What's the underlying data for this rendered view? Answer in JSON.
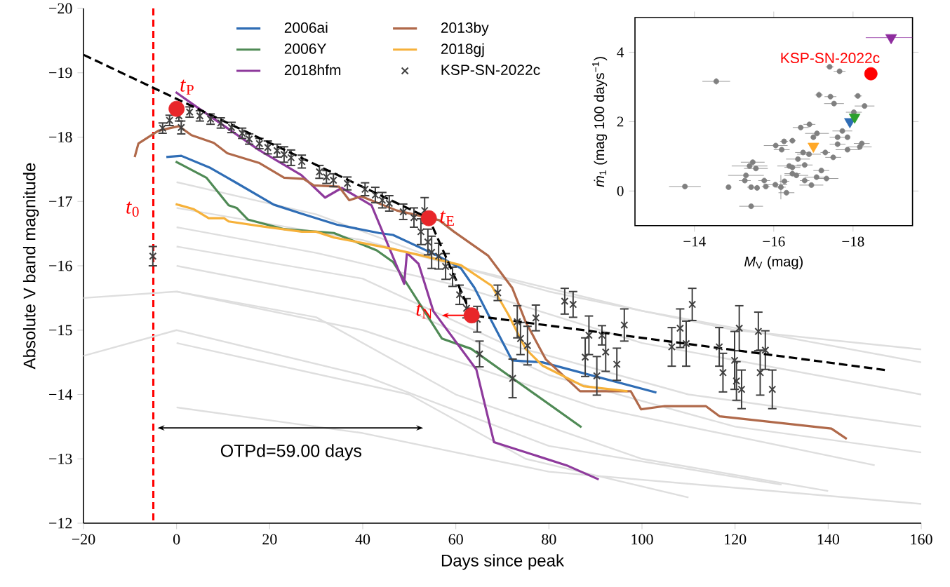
{
  "chart_data": [
    {
      "type": "line",
      "xlabel": "Days since peak",
      "ylabel": "Absolute V band magnitude",
      "xlim": [
        -20,
        160
      ],
      "ylim": [
        -12,
        -20
      ],
      "xticks": [
        {
          "value": -20,
          "label": "−20"
        },
        {
          "value": 0,
          "label": "0"
        },
        {
          "value": 20,
          "label": "20"
        },
        {
          "value": 40,
          "label": "40"
        },
        {
          "value": 60,
          "label": "60"
        },
        {
          "value": 80,
          "label": "80"
        },
        {
          "value": 100,
          "label": "100"
        },
        {
          "value": 120,
          "label": "120"
        },
        {
          "value": 140,
          "label": "140"
        },
        {
          "value": 160,
          "label": "160"
        }
      ],
      "yticks": [
        {
          "value": -20,
          "label": "−20"
        },
        {
          "value": -19,
          "label": "−19"
        },
        {
          "value": -18,
          "label": "−18"
        },
        {
          "value": -17,
          "label": "−17"
        },
        {
          "value": -16,
          "label": "−16"
        },
        {
          "value": -15,
          "label": "−15"
        },
        {
          "value": -14,
          "label": "−14"
        },
        {
          "value": -13,
          "label": "−13"
        },
        {
          "value": -12,
          "label": "−12"
        }
      ],
      "legend": "top",
      "ref_lines": [
        {
          "axis": "x",
          "value": -5,
          "label": "*t*$_{0}$",
          "color": "#ff0000",
          "line_style": "dashed"
        }
      ],
      "annotations": [
        {
          "text": "*t*$_{P}$",
          "x": 0,
          "y": -18.44
        },
        {
          "text": "*t*$_{E}$",
          "x": 54.2,
          "y": -16.74
        },
        {
          "text": "*t*$_{N}$",
          "x": 57,
          "y": -15.23
        },
        "OTPd=59.00 days"
      ],
      "series": [
        {
          "color": "#dedede",
          "x": [
            0,
            40,
            80,
            120,
            160
          ],
          "values": [
            -16.9,
            -16.4,
            -15.6,
            -15.0,
            -14.7
          ]
        },
        {
          "color": "#dedede",
          "x": [
            0,
            30,
            60,
            100,
            160
          ],
          "values": [
            -16.6,
            -16.2,
            -15.7,
            -14.8,
            -14.0
          ]
        },
        {
          "color": "#dedede",
          "x": [
            0,
            40,
            70,
            110,
            160
          ],
          "values": [
            -16.3,
            -15.8,
            -14.8,
            -14.0,
            -13.5
          ]
        },
        {
          "color": "#dedede",
          "x": [
            0,
            50,
            80,
            120,
            160
          ],
          "values": [
            -16.0,
            -15.3,
            -14.3,
            -13.5,
            -13.1
          ]
        },
        {
          "color": "#dedede",
          "x": [
            -20,
            0,
            40,
            90,
            150
          ],
          "values": [
            -15.5,
            -15.6,
            -15.0,
            -13.8,
            -12.9
          ]
        },
        {
          "color": "#dedede",
          "x": [
            0,
            30,
            60,
            100,
            140
          ],
          "values": [
            -15.6,
            -15.2,
            -14.0,
            -13.0,
            -12.5
          ]
        },
        {
          "color": "#dedede",
          "x": [
            -20,
            0,
            40,
            80,
            130
          ],
          "values": [
            -14.6,
            -15.0,
            -14.3,
            -13.2,
            -12.6
          ]
        },
        {
          "color": "#dedede",
          "x": [
            0,
            50,
            75,
            110
          ],
          "values": [
            -14.8,
            -14.0,
            -13.0,
            -12.4
          ]
        },
        {
          "color": "#dedede",
          "x": [
            0,
            30,
            60,
            100,
            160
          ],
          "values": [
            -17.3,
            -16.8,
            -16.0,
            -15.3,
            -14.5
          ]
        },
        {
          "color": "#dedede",
          "x": [
            0,
            40,
            80,
            160
          ],
          "values": [
            -13.8,
            -13.4,
            -12.8,
            -12.3
          ]
        },
        {
          "name": "2006ai",
          "color": "#2f6db5",
          "x": [
            -2.2,
            1.0,
            7.3,
            12.6,
            20.9,
            26.9,
            34.4,
            43.5,
            46.5,
            56.0,
            61.1,
            64.0,
            67.7,
            72.1,
            78.6,
            103.1
          ],
          "values": [
            -17.69,
            -17.71,
            -17.52,
            -17.3,
            -16.95,
            -16.81,
            -16.64,
            -16.51,
            -16.48,
            -16.16,
            -15.96,
            -15.66,
            -15.14,
            -14.53,
            -14.5,
            -14.03
          ]
        },
        {
          "name": "2006Y",
          "color": "#4f8a55",
          "x": [
            -0.2,
            6.4,
            11.2,
            12.9,
            15.3,
            23.1,
            33.8,
            43.0,
            46.5,
            57.0,
            63.3,
            87.0
          ],
          "values": [
            -17.62,
            -17.37,
            -16.94,
            -16.9,
            -16.72,
            -16.57,
            -16.51,
            -16.24,
            -16.06,
            -14.87,
            -14.71,
            -13.49
          ]
        },
        {
          "name": "2018hfm",
          "color": "#8e3a9c",
          "x": [
            -0.2,
            3.7,
            17.7,
            26.8,
            31.9,
            35.5,
            41.9,
            48.9,
            49.5,
            52.0,
            55.2,
            64.4,
            68.2,
            84.1,
            90.7
          ],
          "values": [
            -18.7,
            -18.5,
            -17.8,
            -17.41,
            -17.06,
            -17.21,
            -16.94,
            -15.72,
            -16.2,
            -16.03,
            -15.29,
            -14.39,
            -13.26,
            -12.89,
            -12.68
          ]
        },
        {
          "name": "2013by",
          "color": "#b0694a",
          "x": [
            -9.0,
            -8.2,
            -3.9,
            0.5,
            3.2,
            8.0,
            10.9,
            17.7,
            23.1,
            27.3,
            29.5,
            34.9,
            37.1,
            39.7,
            47.3,
            56.4,
            59.6,
            66.9,
            72.1,
            75.0,
            79.3,
            86.7,
            97.6,
            99.8,
            104.9,
            113.7,
            116.7,
            140.7,
            144.0
          ],
          "values": [
            -17.69,
            -17.9,
            -18.1,
            -18.17,
            -18.03,
            -17.91,
            -17.75,
            -17.6,
            -17.37,
            -17.35,
            -17.25,
            -17.23,
            -17.02,
            -17.08,
            -16.86,
            -16.71,
            -16.53,
            -16.16,
            -15.66,
            -15.13,
            -14.55,
            -14.05,
            -14.05,
            -13.77,
            -13.82,
            -13.82,
            -13.66,
            -13.47,
            -13.31
          ]
        },
        {
          "name": "2018gj",
          "color": "#f6b13a",
          "x": [
            -0.2,
            3.7,
            6.9,
            10.2,
            11.2,
            18.7,
            26.9,
            30.0,
            33.8,
            44.6,
            52.7,
            61.1,
            67.7,
            71.3,
            75.0,
            78.6,
            87.4,
            96.9
          ],
          "values": [
            -16.96,
            -16.88,
            -16.74,
            -16.74,
            -16.69,
            -16.61,
            -16.53,
            -16.53,
            -16.44,
            -16.29,
            -16.16,
            -16.01,
            -15.69,
            -15.24,
            -14.71,
            -14.45,
            -14.13,
            -14.05
          ]
        },
        {
          "name": "KSP-SN-2022c",
          "type": "scatter",
          "color": "#404040",
          "marker": "cross",
          "x": [
            -5.1,
            -3.0,
            -1.5,
            0.5,
            1.0,
            2.8,
            5.0,
            7.3,
            9.5,
            11.8,
            14.1,
            15.6,
            17.8,
            19.6,
            21.6,
            23.1,
            24.6,
            26.9,
            30.7,
            32.2,
            33.7,
            36.7,
            40.5,
            42.7,
            44.2,
            45.7,
            48.7,
            51.0,
            53.3,
            52.5,
            54.0,
            54.8,
            56.3,
            57.8,
            59.3,
            60.8,
            62.3,
            64.6,
            65.1,
            69.0,
            72.2,
            73.2,
            73.9,
            75.4,
            77.2,
            83.4,
            85.2,
            88.6,
            87.8,
            90.3,
            91.4,
            92.2,
            94.6,
            96.2,
            106.4,
            108.2,
            109.5,
            110.8,
            116.6,
            117.4,
            119.9,
            120.9,
            120.3,
            121.4,
            125.0,
            125.4,
            126.5,
            128.0
          ],
          "values": [
            -16.15,
            -18.14,
            -18.26,
            -18.33,
            -18.15,
            -18.39,
            -18.33,
            -18.28,
            -18.22,
            -18.15,
            -18.06,
            -17.97,
            -17.9,
            -17.84,
            -17.79,
            -17.73,
            -17.68,
            -17.62,
            -17.46,
            -17.38,
            -17.33,
            -17.28,
            -17.19,
            -17.1,
            -17.02,
            -16.97,
            -16.84,
            -16.75,
            -16.86,
            -16.53,
            -16.37,
            -16.21,
            -16.15,
            -15.99,
            -15.83,
            -15.55,
            -15.34,
            -15.17,
            -14.63,
            -15.58,
            -14.25,
            -15.13,
            -14.87,
            -14.76,
            -15.19,
            -15.45,
            -15.4,
            -14.92,
            -14.58,
            -14.29,
            -14.92,
            -14.66,
            -14.47,
            -15.08,
            -14.74,
            -15.03,
            -14.79,
            -15.4,
            -14.74,
            -14.34,
            -14.53,
            -15.03,
            -14.21,
            -14.08,
            -14.98,
            -14.34,
            -14.69,
            -14.08
          ],
          "errors": [
            0.15,
            0.08,
            0.08,
            0.08,
            0.1,
            0.08,
            0.08,
            0.08,
            0.08,
            0.08,
            0.08,
            0.08,
            0.08,
            0.1,
            0.1,
            0.12,
            0.12,
            0.1,
            0.1,
            0.1,
            0.1,
            0.1,
            0.1,
            0.12,
            0.12,
            0.12,
            0.12,
            0.15,
            0.2,
            0.2,
            0.2,
            0.25,
            0.2,
            0.2,
            0.15,
            0.15,
            0.15,
            0.2,
            0.2,
            0.12,
            0.3,
            0.25,
            0.25,
            0.3,
            0.2,
            0.2,
            0.2,
            0.3,
            0.3,
            0.3,
            0.15,
            0.3,
            0.25,
            0.25,
            0.3,
            0.3,
            0.35,
            0.25,
            0.3,
            0.3,
            0.45,
            0.35,
            0.3,
            0.3,
            0.3,
            0.35,
            0.3,
            0.3
          ]
        },
        {
          "color": "#000000",
          "line_style": "dashed",
          "x": [
            -20,
            54.2,
            63.4,
            152.3
          ],
          "values": [
            -19.28,
            -16.74,
            -15.23,
            -14.38
          ]
        },
        {
          "type": "scatter",
          "color": "#e8262a",
          "marker": "circle",
          "x": [
            0,
            54.2,
            63.4
          ],
          "values": [
            -18.44,
            -16.74,
            -15.23
          ]
        }
      ]
    },
    {
      "type": "scatter",
      "xlabel": "*M*$_{V}$ (mag)",
      "ylabel": "*ṁ*$_{1}$ (mag 100 days$^{−1}$)",
      "xlim": [
        -12.5,
        -19.5
      ],
      "ylim": [
        -1,
        5
      ],
      "xticks": [
        {
          "value": -14,
          "label": "−14"
        },
        {
          "value": -16,
          "label": "−16"
        },
        {
          "value": -18,
          "label": "−18"
        }
      ],
      "yticks": [
        0,
        2,
        4
      ],
      "series": [
        {
          "color": "#808080",
          "marker": "circle",
          "x": [
            -13.76,
            -14.55,
            -14.86,
            -15.3,
            -15.27,
            -15.39,
            -15.47,
            -15.55,
            -15.43,
            -15.43,
            -15.58,
            -15.76,
            -15.8,
            -16.05,
            -16.2,
            -16.04,
            -16.18,
            -16.26,
            -16.47,
            -16.27,
            -16.32,
            -16.39,
            -16.47,
            -16.47,
            -16.57,
            -16.61,
            -16.68,
            -16.9,
            -16.74,
            -16.89,
            -16.78,
            -16.78,
            -16.95,
            -17.0,
            -17.09,
            -17.08,
            -17.2,
            -17.14,
            -17.3,
            -17.33,
            -17.41,
            -17.43,
            -17.52,
            -17.5,
            -17.61,
            -17.61,
            -17.66,
            -17.73,
            -17.86,
            -17.86,
            -18.12,
            -18.29,
            -18.22,
            -18.17,
            -18.02
          ],
          "values": [
            0.13,
            3.16,
            0.11,
            0.45,
            0.3,
            0.72,
            0.83,
            0.65,
            0.11,
            -0.44,
            0.09,
            0.3,
            0.13,
            1.31,
            1.19,
            0.18,
            0.11,
            1.43,
            1.45,
            0.28,
            -0.05,
            0.72,
            0.68,
            0.5,
            0.45,
            0.92,
            1.83,
            1.92,
            1.11,
            1.06,
            0.75,
            0.3,
            0.17,
            1.55,
            1.66,
            0.4,
            0.59,
            2.77,
            1.11,
            0.36,
            3.58,
            2.72,
            2.52,
            0.97,
            1.55,
            1.35,
            3.45,
            1.73,
            1.55,
            1.19,
            2.74,
            2.45,
            1.37,
            1.27,
            2.27
          ],
          "xerrors": [
            0.4,
            0.35,
            null,
            0.45,
            0.15,
            0.45,
            0.3,
            0.3,
            0.1,
            0.3,
            null,
            0.15,
            0.1,
            0.3,
            0.2,
            0.3,
            0.12,
            0.1,
            0.08,
            0.12,
            0.2,
            0.3,
            0.2,
            0.2,
            0.3,
            0.3,
            0.2,
            0.15,
            0.2,
            0.3,
            0.2,
            0.12,
            0.3,
            null,
            0.3,
            0.3,
            0.2,
            0.1,
            0.12,
            0.3,
            0.1,
            0.15,
            0.25,
            0.2,
            0.2,
            0.2,
            0.15,
            0.25,
            null,
            0.3,
            0.1,
            0.25,
            0.2,
            0.3,
            0.2
          ],
          "errors": [
            null,
            0.1,
            null,
            null,
            null,
            null,
            null,
            null,
            null,
            null,
            null,
            null,
            null,
            null,
            null,
            null,
            0.35,
            null,
            null,
            null,
            null,
            null,
            null,
            null,
            null,
            null,
            null,
            null,
            null,
            null,
            null,
            null,
            null,
            null,
            null,
            null,
            null,
            0.1,
            null,
            null,
            null,
            null,
            null,
            null,
            null,
            null,
            null,
            null,
            null,
            null,
            null,
            null,
            null,
            null,
            null
          ]
        },
        {
          "color": "#2f6db5",
          "marker": "triangle",
          "x": [
            -17.92
          ],
          "values": [
            2.0
          ]
        },
        {
          "color": "#2ca02c",
          "marker": "triangle",
          "x": [
            -18.04
          ],
          "values": [
            2.13
          ]
        },
        {
          "color": "#ffa828",
          "marker": "triangle",
          "x": [
            -17.0
          ],
          "values": [
            1.29
          ]
        },
        {
          "color": "#8e2c9e",
          "marker": "triangle",
          "x": [
            -18.96
          ],
          "values": [
            4.42
          ],
          "xerrors": [
            [
              -19.5,
              -18.32
            ]
          ]
        },
        {
          "name": "KSP-SN-2022c",
          "color": "#ff0000",
          "marker": "circle",
          "x": [
            -18.45
          ],
          "values": [
            3.38
          ]
        }
      ]
    }
  ]
}
